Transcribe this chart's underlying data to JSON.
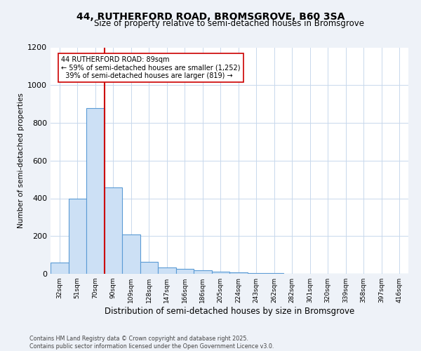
{
  "title": "44, RUTHERFORD ROAD, BROMSGROVE, B60 3SA",
  "subtitle": "Size of property relative to semi-detached houses in Bromsgrove",
  "xlabel": "Distribution of semi-detached houses by size in Bromsgrove",
  "ylabel": "Number of semi-detached properties",
  "bar_labels": [
    "32sqm",
    "51sqm",
    "70sqm",
    "90sqm",
    "109sqm",
    "128sqm",
    "147sqm",
    "166sqm",
    "186sqm",
    "205sqm",
    "224sqm",
    "243sqm",
    "262sqm",
    "282sqm",
    "301sqm",
    "320sqm",
    "339sqm",
    "358sqm",
    "397sqm",
    "416sqm"
  ],
  "bar_values": [
    60,
    397,
    878,
    458,
    207,
    65,
    35,
    25,
    18,
    10,
    7,
    5,
    5,
    0,
    0,
    0,
    0,
    0,
    0,
    0
  ],
  "bar_color": "#cce0f5",
  "bar_edge_color": "#5b9bd5",
  "vline_color": "#cc0000",
  "annotation_text": "44 RUTHERFORD ROAD: 89sqm\n← 59% of semi-detached houses are smaller (1,252)\n  39% of semi-detached houses are larger (819) →",
  "annotation_box_color": "#ffffff",
  "annotation_box_edge_color": "#cc0000",
  "ylim": [
    0,
    1200
  ],
  "yticks": [
    0,
    200,
    400,
    600,
    800,
    1000,
    1200
  ],
  "footer": "Contains HM Land Registry data © Crown copyright and database right 2025.\nContains public sector information licensed under the Open Government Licence v3.0.",
  "bg_color": "#eef2f8",
  "plot_bg_color": "#ffffff",
  "grid_color": "#c8d8ec"
}
